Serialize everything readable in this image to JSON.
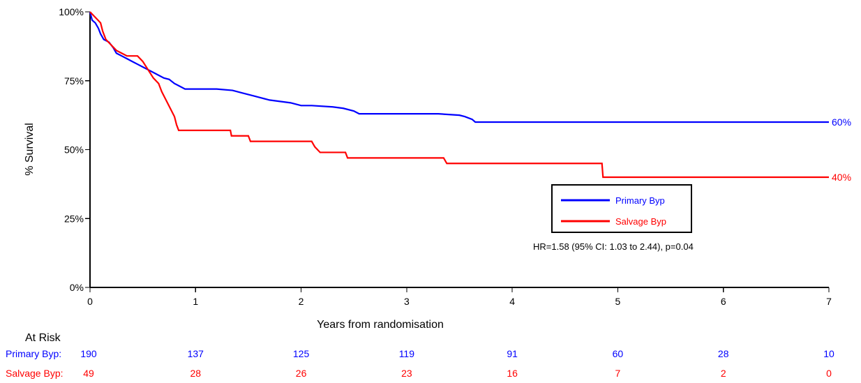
{
  "chart_data": {
    "type": "line",
    "title": "",
    "xlabel": "Years from randomisation",
    "ylabel": "% Survival",
    "xlim": [
      0,
      7
    ],
    "ylim": [
      0,
      100
    ],
    "x_ticks": [
      0,
      1,
      2,
      3,
      4,
      5,
      6,
      7
    ],
    "y_ticks": [
      {
        "value": 0,
        "label": "0%"
      },
      {
        "value": 25,
        "label": "25%"
      },
      {
        "value": 50,
        "label": "50%"
      },
      {
        "value": 75,
        "label": "75%"
      },
      {
        "value": 100,
        "label": "100%"
      }
    ],
    "grid": false,
    "legend": {
      "placement": "center-right",
      "entries": [
        {
          "label": "Primary Byp",
          "series": "Primary Byp"
        },
        {
          "label": "Salvage Byp",
          "series": "Salvage Byp"
        }
      ]
    },
    "annotation": "HR=1.58 (95% CI: 1.03 to 2.44), p=0.04",
    "series": [
      {
        "name": "Primary Byp",
        "color": "#0000FF",
        "end_label": "60%",
        "points": [
          [
            0,
            100
          ],
          [
            0.02,
            97
          ],
          [
            0.05,
            96
          ],
          [
            0.08,
            94
          ],
          [
            0.1,
            92
          ],
          [
            0.13,
            90
          ],
          [
            0.18,
            89
          ],
          [
            0.22,
            87
          ],
          [
            0.25,
            85
          ],
          [
            0.3,
            84
          ],
          [
            0.35,
            83
          ],
          [
            0.4,
            82
          ],
          [
            0.45,
            81
          ],
          [
            0.5,
            80
          ],
          [
            0.55,
            79
          ],
          [
            0.6,
            78
          ],
          [
            0.65,
            77
          ],
          [
            0.7,
            76
          ],
          [
            0.75,
            75.5
          ],
          [
            0.8,
            74
          ],
          [
            0.85,
            73
          ],
          [
            0.9,
            72
          ],
          [
            1.0,
            72
          ],
          [
            1.2,
            72
          ],
          [
            1.35,
            71.5
          ],
          [
            1.45,
            70.5
          ],
          [
            1.55,
            69.5
          ],
          [
            1.6,
            69
          ],
          [
            1.7,
            68
          ],
          [
            1.8,
            67.5
          ],
          [
            1.9,
            67
          ],
          [
            2.0,
            66
          ],
          [
            2.1,
            66
          ],
          [
            2.3,
            65.5
          ],
          [
            2.4,
            65
          ],
          [
            2.5,
            64
          ],
          [
            2.55,
            63
          ],
          [
            2.9,
            63
          ],
          [
            3.3,
            63
          ],
          [
            3.5,
            62.5
          ],
          [
            3.55,
            62
          ],
          [
            3.62,
            61
          ],
          [
            3.65,
            60
          ],
          [
            4.0,
            60
          ],
          [
            5.0,
            60
          ],
          [
            6.0,
            60
          ],
          [
            7.0,
            60
          ]
        ]
      },
      {
        "name": "Salvage Byp",
        "color": "#FF0000",
        "end_label": "40%",
        "points": [
          [
            0,
            100
          ],
          [
            0.05,
            98
          ],
          [
            0.1,
            96
          ],
          [
            0.12,
            93
          ],
          [
            0.15,
            90
          ],
          [
            0.2,
            88
          ],
          [
            0.25,
            86
          ],
          [
            0.3,
            85
          ],
          [
            0.35,
            84
          ],
          [
            0.45,
            84
          ],
          [
            0.5,
            82
          ],
          [
            0.55,
            79
          ],
          [
            0.6,
            76
          ],
          [
            0.65,
            74
          ],
          [
            0.68,
            71
          ],
          [
            0.72,
            68
          ],
          [
            0.76,
            65
          ],
          [
            0.8,
            62
          ],
          [
            0.82,
            59
          ],
          [
            0.84,
            57
          ],
          [
            1.0,
            57
          ],
          [
            1.33,
            57
          ],
          [
            1.34,
            55
          ],
          [
            1.5,
            55
          ],
          [
            1.52,
            53
          ],
          [
            2.1,
            53
          ],
          [
            2.13,
            51
          ],
          [
            2.18,
            49
          ],
          [
            2.42,
            49
          ],
          [
            2.44,
            47
          ],
          [
            3.35,
            47
          ],
          [
            3.38,
            45
          ],
          [
            4.85,
            45
          ],
          [
            4.86,
            40
          ],
          [
            7.0,
            40
          ]
        ]
      }
    ],
    "at_risk": {
      "title": "At Risk",
      "times": [
        0,
        1,
        2,
        3,
        4,
        5,
        6,
        7
      ],
      "rows": [
        {
          "label": "Primary Byp:",
          "color": "#0000FF",
          "values": [
            "190",
            "137",
            "125",
            "119",
            "91",
            "60",
            "28",
            "10"
          ]
        },
        {
          "label": "Salvage Byp:",
          "color": "#FF0000",
          "values": [
            "49",
            "28",
            "26",
            "23",
            "16",
            "7",
            "2",
            "0"
          ]
        }
      ]
    }
  }
}
